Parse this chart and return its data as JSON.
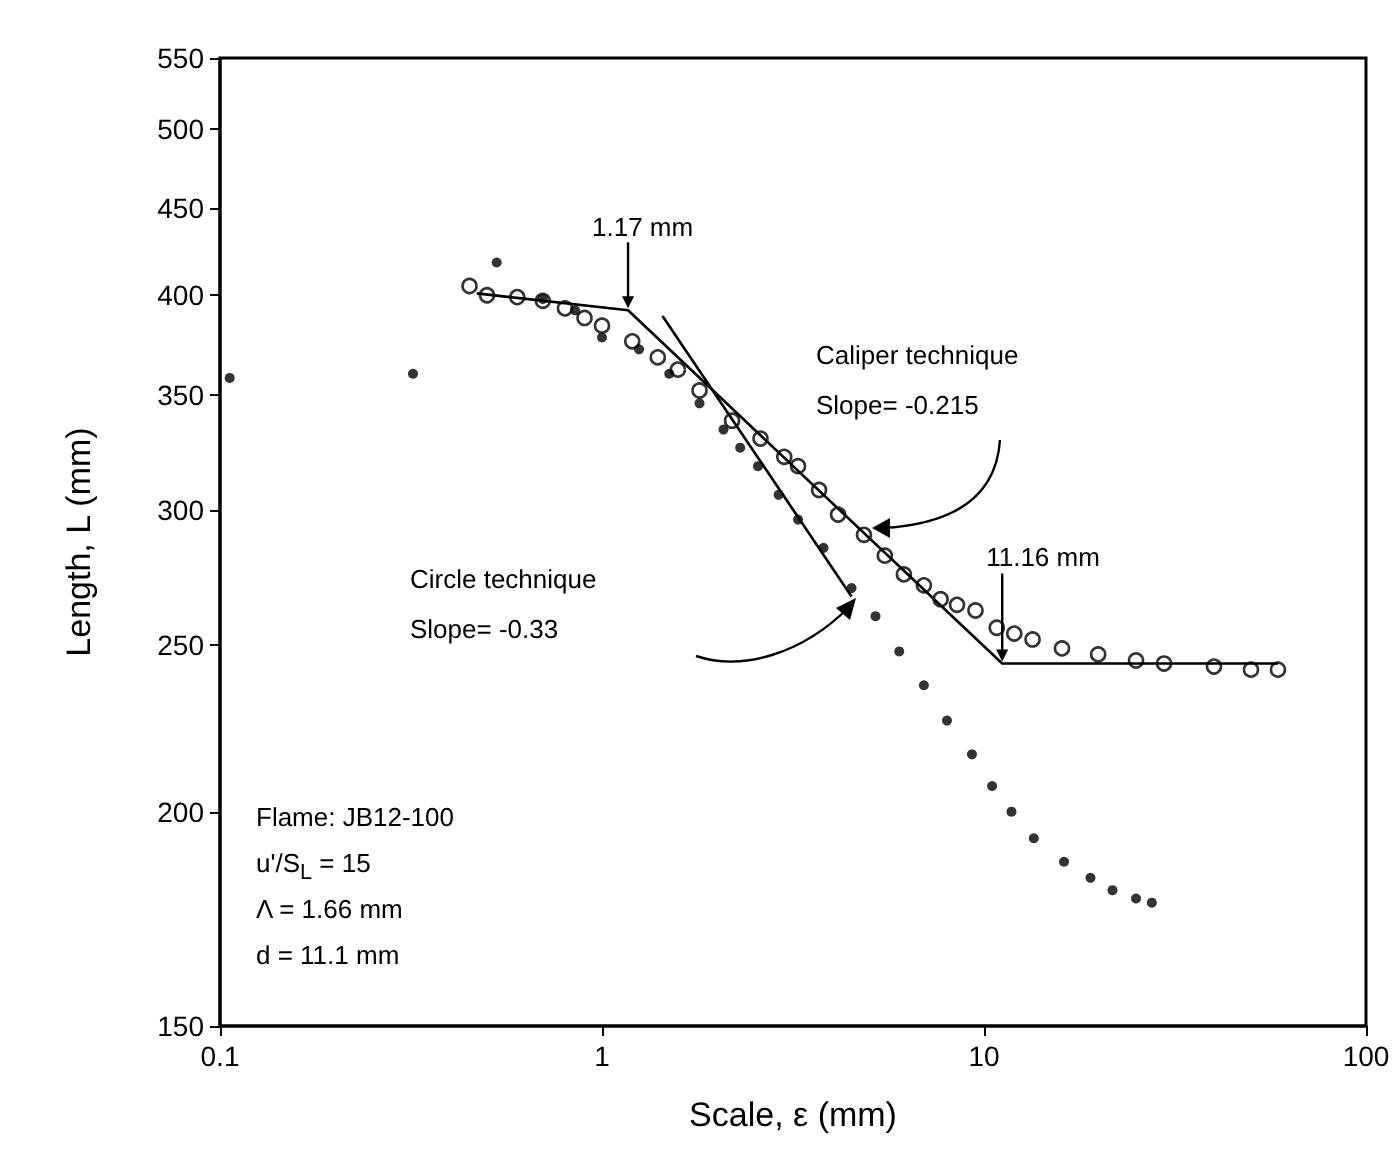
{
  "chart_data": {
    "type": "scatter",
    "xlabel": "Scale, ε (mm)",
    "ylabel": "Length, L (mm)",
    "log": "xy",
    "grid": false,
    "marker": "circle",
    "xlim": [
      0.1,
      100
    ],
    "xticks": [
      0.1,
      1,
      10,
      100
    ],
    "ylim": [
      150,
      550
    ],
    "yticks": [
      150,
      200,
      250,
      300,
      350,
      400,
      450,
      500,
      550
    ],
    "series": [
      {
        "color": "#000000",
        "x": [
          0.106,
          0.32,
          0.53,
          0.7,
          0.85,
          1.0,
          1.25,
          1.5,
          1.8,
          2.08,
          2.3,
          2.56,
          2.9,
          3.26,
          3.8,
          4.5,
          5.2,
          6.0,
          6.96,
          8.0,
          9.3,
          10.5,
          11.8,
          13.5,
          16.2,
          19,
          21.7,
          25,
          27.5
        ],
        "values": [
          358,
          360,
          418,
          398,
          392,
          378,
          372,
          360,
          346,
          334,
          326,
          318,
          306,
          296,
          285,
          270,
          260,
          248,
          237,
          226,
          216,
          207,
          200,
          193,
          187,
          183,
          180,
          178,
          177
        ]
      },
      {
        "color": "#000000",
        "x": [
          0.45,
          0.5,
          0.6,
          0.7,
          0.8,
          0.9,
          1.0,
          1.2,
          1.4,
          1.58,
          1.8,
          2.19,
          2.6,
          3.0,
          3.26,
          3.7,
          4.15,
          4.85,
          5.5,
          6.17,
          6.96,
          7.7,
          8.5,
          9.5,
          10.8,
          12,
          13.4,
          16,
          19.9,
          25,
          29.6,
          40,
          50,
          58.8
        ],
        "values": [
          405,
          400,
          399,
          397,
          393,
          388,
          384,
          376,
          368,
          362,
          352,
          338,
          330,
          322,
          318,
          308,
          298,
          290,
          282,
          275,
          271,
          266,
          264,
          262,
          256,
          254,
          252,
          249,
          247,
          245,
          244,
          243,
          242,
          242
        ]
      },
      {
        "type": "line",
        "color": "#000000",
        "marker": "none",
        "x": [
          0.47,
          1.17,
          11.16,
          58.8
        ],
        "values": [
          401,
          392,
          244,
          244
        ]
      },
      {
        "type": "line",
        "color": "#000000",
        "marker": "none",
        "x": [
          1.44,
          4.5
        ],
        "values": [
          389,
          267
        ]
      }
    ],
    "annotations": [
      {
        "text": "1.17 mm",
        "x": 1.17,
        "y": 392
      },
      {
        "text": "11.16 mm",
        "x": 11.16,
        "y": 244
      },
      "Caliper technique",
      "Slope= -0.215",
      "Circle technique",
      "Slope= -0.33",
      "Flame: JB12-100",
      "u'/S$_{L}$ = 15",
      "Λ = 1.66 mm",
      "d = 11.1 mm"
    ]
  }
}
